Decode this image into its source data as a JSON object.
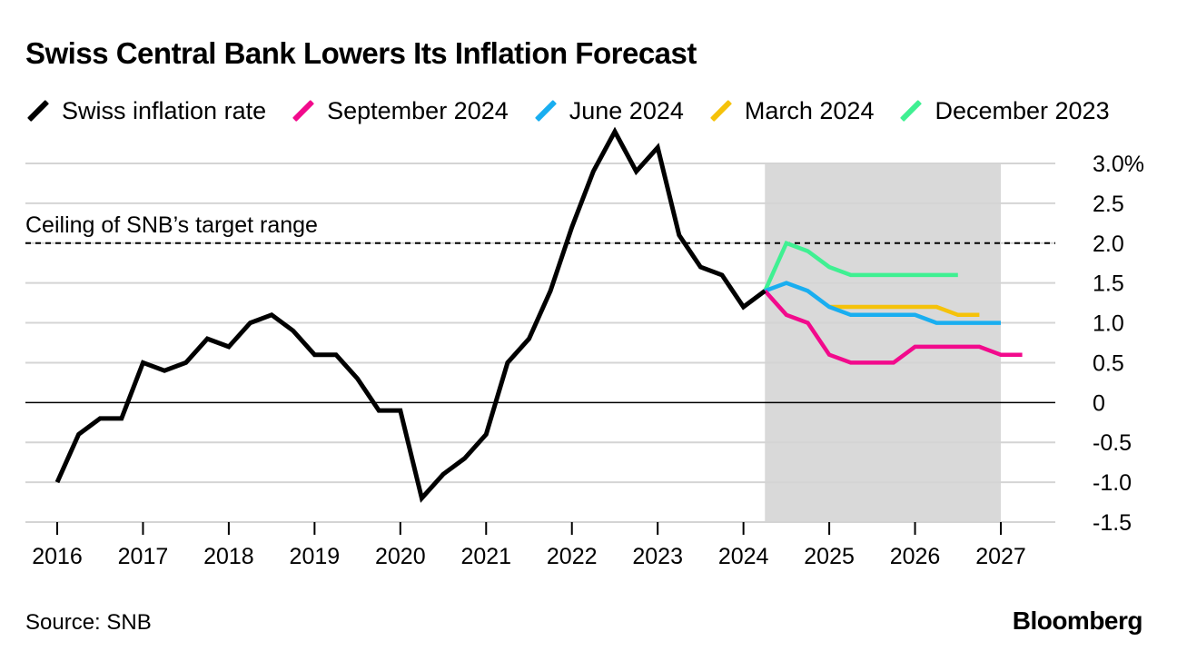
{
  "title": "Swiss Central Bank Lowers Its Inflation Forecast",
  "source": "Source: SNB",
  "brand": "Bloomberg",
  "chart_data": {
    "type": "line",
    "title": "Swiss Central Bank Lowers Its Inflation Forecast",
    "xlabel": "",
    "ylabel": "",
    "x_ticks": [
      2016,
      2017,
      2018,
      2019,
      2020,
      2021,
      2022,
      2023,
      2024,
      2025,
      2026,
      2027
    ],
    "xlim": [
      2015.64,
      2027.5
    ],
    "y_ticks": [
      {
        "value": 3.0,
        "label": "3.0%"
      },
      {
        "value": 2.5,
        "label": "2.5"
      },
      {
        "value": 2.0,
        "label": "2.0"
      },
      {
        "value": 1.5,
        "label": "1.5"
      },
      {
        "value": 1.0,
        "label": "1.0"
      },
      {
        "value": 0.5,
        "label": "0.5"
      },
      {
        "value": 0,
        "label": "0"
      },
      {
        "value": -0.5,
        "label": "-0.5"
      },
      {
        "value": -1.0,
        "label": "-1.0"
      },
      {
        "value": -1.5,
        "label": "-1.5"
      }
    ],
    "ylim": [
      -1.5,
      3.0
    ],
    "grid": true,
    "legend_position": "top",
    "forecast_shading": {
      "from": 2024.25,
      "to": 2027.0,
      "color": "#d9d9d9"
    },
    "reference_line": {
      "value": 2.0,
      "label": "Ceiling of SNB’s target range",
      "style": "dashed"
    },
    "series": [
      {
        "name": "Swiss inflation rate",
        "color": "#000000",
        "points": [
          [
            2016.0,
            -1.0
          ],
          [
            2016.25,
            -0.4
          ],
          [
            2016.5,
            -0.2
          ],
          [
            2016.75,
            -0.2
          ],
          [
            2017.0,
            0.5
          ],
          [
            2017.25,
            0.4
          ],
          [
            2017.5,
            0.5
          ],
          [
            2017.75,
            0.8
          ],
          [
            2018.0,
            0.7
          ],
          [
            2018.25,
            1.0
          ],
          [
            2018.5,
            1.1
          ],
          [
            2018.75,
            0.9
          ],
          [
            2019.0,
            0.6
          ],
          [
            2019.25,
            0.6
          ],
          [
            2019.5,
            0.3
          ],
          [
            2019.75,
            -0.1
          ],
          [
            2020.0,
            -0.1
          ],
          [
            2020.25,
            -1.2
          ],
          [
            2020.5,
            -0.9
          ],
          [
            2020.75,
            -0.7
          ],
          [
            2021.0,
            -0.4
          ],
          [
            2021.25,
            0.5
          ],
          [
            2021.5,
            0.8
          ],
          [
            2021.75,
            1.4
          ],
          [
            2022.0,
            2.2
          ],
          [
            2022.25,
            2.9
          ],
          [
            2022.5,
            3.4
          ],
          [
            2022.75,
            2.9
          ],
          [
            2023.0,
            3.2
          ],
          [
            2023.25,
            2.1
          ],
          [
            2023.5,
            1.7
          ],
          [
            2023.75,
            1.6
          ],
          [
            2024.0,
            1.2
          ],
          [
            2024.25,
            1.4
          ]
        ]
      },
      {
        "name": "September 2024",
        "color": "#f20a8c",
        "points": [
          [
            2024.25,
            1.4
          ],
          [
            2024.5,
            1.1
          ],
          [
            2024.75,
            1.0
          ],
          [
            2025.0,
            0.6
          ],
          [
            2025.25,
            0.5
          ],
          [
            2025.5,
            0.5
          ],
          [
            2025.75,
            0.5
          ],
          [
            2026.0,
            0.7
          ],
          [
            2026.25,
            0.7
          ],
          [
            2026.5,
            0.7
          ],
          [
            2026.75,
            0.7
          ],
          [
            2027.0,
            0.6
          ],
          [
            2027.25,
            0.6
          ]
        ]
      },
      {
        "name": "June 2024",
        "color": "#19aef0",
        "points": [
          [
            2024.25,
            1.4
          ],
          [
            2024.5,
            1.5
          ],
          [
            2024.75,
            1.4
          ],
          [
            2025.0,
            1.2
          ],
          [
            2025.25,
            1.1
          ],
          [
            2025.5,
            1.1
          ],
          [
            2025.75,
            1.1
          ],
          [
            2026.0,
            1.1
          ],
          [
            2026.25,
            1.0
          ],
          [
            2026.5,
            1.0
          ],
          [
            2026.75,
            1.0
          ],
          [
            2027.0,
            1.0
          ]
        ]
      },
      {
        "name": "March 2024",
        "color": "#f5c20a",
        "points": [
          [
            2025.0,
            1.2
          ],
          [
            2025.25,
            1.2
          ],
          [
            2025.5,
            1.2
          ],
          [
            2025.75,
            1.2
          ],
          [
            2026.0,
            1.2
          ],
          [
            2026.25,
            1.2
          ],
          [
            2026.5,
            1.1
          ],
          [
            2026.75,
            1.1
          ]
        ]
      },
      {
        "name": "December 2023",
        "color": "#3ff092",
        "points": [
          [
            2024.25,
            1.4
          ],
          [
            2024.5,
            2.0
          ],
          [
            2024.75,
            1.9
          ],
          [
            2025.0,
            1.7
          ],
          [
            2025.25,
            1.6
          ],
          [
            2025.5,
            1.6
          ],
          [
            2025.75,
            1.6
          ],
          [
            2026.0,
            1.6
          ],
          [
            2026.25,
            1.6
          ],
          [
            2026.5,
            1.6
          ]
        ]
      }
    ]
  }
}
